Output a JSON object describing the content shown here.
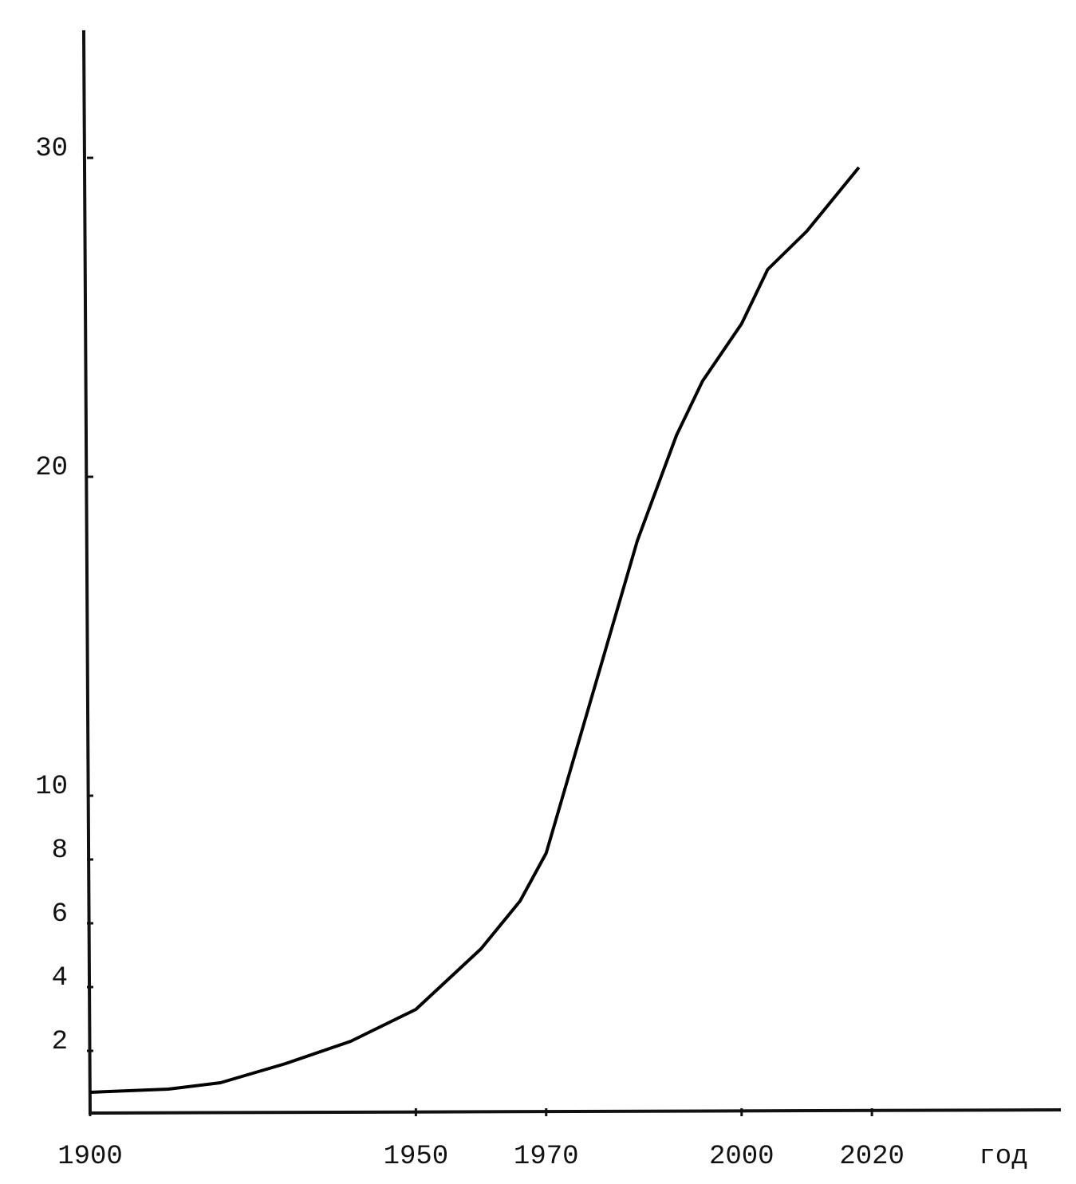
{
  "chart_data": {
    "type": "line",
    "x_label": "год",
    "x": [
      1900,
      1912,
      1920,
      1930,
      1940,
      1950,
      1960,
      1966,
      1970,
      1974,
      1980,
      1984,
      1990,
      1994,
      2000,
      2004,
      2010,
      2018
    ],
    "series": [
      {
        "color": "#000000",
        "values": [
          0.7,
          0.8,
          1.0,
          1.6,
          2.3,
          3.3,
          5.2,
          6.7,
          8.2,
          11,
          15.2,
          18,
          21.3,
          23,
          24.8,
          26.5,
          27.7,
          29.7
        ]
      }
    ],
    "xlim": [
      1900,
      2049
    ],
    "xticks": [
      1900,
      1950,
      1970,
      2000,
      2020
    ],
    "ylim": [
      0,
      34
    ],
    "yticks": [
      2,
      4,
      6,
      8,
      10,
      20,
      30
    ]
  }
}
